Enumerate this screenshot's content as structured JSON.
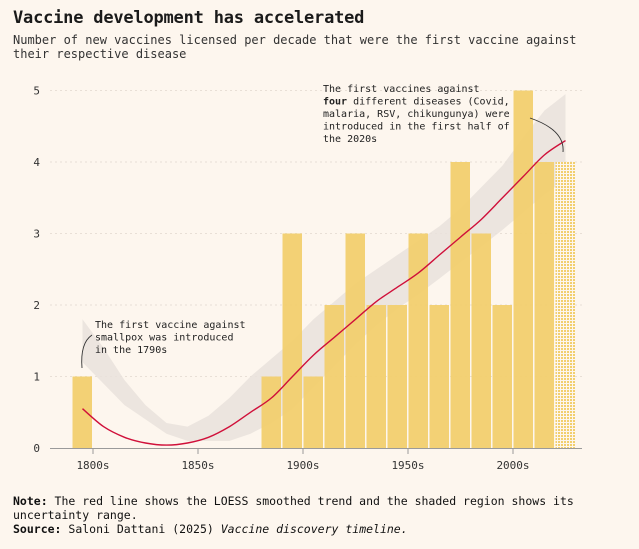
{
  "title": "Vaccine development has accelerated",
  "subtitle": "Number of new vaccines licensed per decade that were the first vaccine against their respective disease",
  "colors": {
    "bar": "#f2cf6e",
    "trend": "#d0103a",
    "band": "#e9e2dc",
    "background": "#fdf6ee"
  },
  "chart_data": {
    "type": "bar",
    "x": [
      1790,
      1880,
      1890,
      1900,
      1910,
      1920,
      1930,
      1940,
      1950,
      1960,
      1970,
      1980,
      1990,
      2000,
      2010,
      2020
    ],
    "values": [
      1,
      1,
      3,
      1,
      2,
      3,
      2,
      2,
      3,
      2,
      4,
      3,
      2,
      5,
      4,
      4
    ],
    "partial_decade": 2020,
    "x_ticks": [
      "1800s",
      "1850s",
      "1900s",
      "1950s",
      "2000s"
    ],
    "x_tick_values": [
      1800,
      1850,
      1900,
      1950,
      2000
    ],
    "y_ticks": [
      "0",
      "1",
      "2",
      "3",
      "4",
      "5"
    ],
    "ylim": [
      0,
      5
    ],
    "trend": {
      "name": "LOESS smoothed trend",
      "x": [
        1790,
        1800,
        1810,
        1820,
        1830,
        1840,
        1850,
        1860,
        1870,
        1880,
        1890,
        1900,
        1910,
        1920,
        1930,
        1940,
        1950,
        1960,
        1970,
        1980,
        1990,
        2000,
        2010,
        2020
      ],
      "y": [
        0.55,
        0.3,
        0.15,
        0.07,
        0.04,
        0.07,
        0.15,
        0.3,
        0.5,
        0.7,
        1.0,
        1.3,
        1.55,
        1.8,
        2.05,
        2.25,
        2.45,
        2.7,
        2.95,
        3.2,
        3.5,
        3.8,
        4.1,
        4.3
      ],
      "lower": [
        1.2,
        0.9,
        0.6,
        0.4,
        0.2,
        0.1,
        0.1,
        0.1,
        0.2,
        0.35,
        0.55,
        0.85,
        1.15,
        1.45,
        1.72,
        1.95,
        2.15,
        2.37,
        2.6,
        2.82,
        3.05,
        3.3,
        3.55,
        3.75
      ],
      "upper": [
        1.8,
        1.4,
        0.95,
        0.6,
        0.35,
        0.3,
        0.45,
        0.7,
        1.0,
        1.25,
        1.5,
        1.8,
        2.05,
        2.3,
        2.5,
        2.7,
        2.9,
        3.1,
        3.35,
        3.65,
        3.95,
        4.35,
        4.72,
        4.95
      ]
    },
    "annotations": [
      {
        "lines": [
          "The first vaccine against",
          "smallpox was introduced",
          "in the 1790s"
        ]
      },
      {
        "lines": [
          "The first vaccines against",
          "four different diseases (Covid,",
          "malaria, RSV, chikungunya) were",
          "introduced in the first half of",
          "the 2020s"
        ],
        "bold_word": "four"
      }
    ]
  },
  "footer": {
    "note_label": "Note:",
    "note_text": " The red line shows the LOESS smoothed trend and the shaded region shows its uncertainty range.",
    "source_label": "Source:",
    "source_text": " Saloni Dattani (2025) ",
    "source_italic": "Vaccine discovery timeline."
  }
}
